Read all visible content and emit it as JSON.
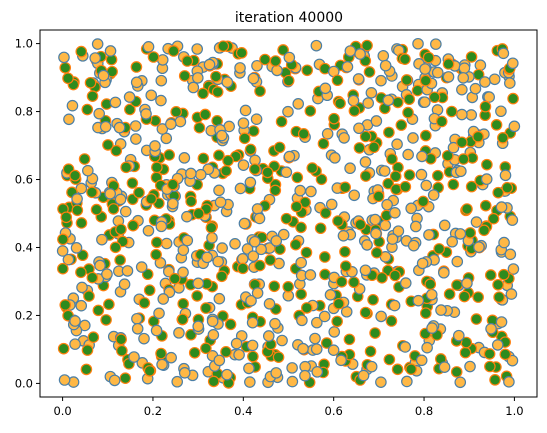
{
  "chart_data": {
    "type": "scatter",
    "title": "iteration 40000",
    "xlabel": "",
    "ylabel": "",
    "xlim": [
      -0.05,
      1.05
    ],
    "ylim": [
      -0.04,
      1.04
    ],
    "xticks": [
      "0.0",
      "0.2",
      "0.4",
      "0.6",
      "0.8",
      "1.0"
    ],
    "xtick_values": [
      0,
      0.2,
      0.4,
      0.6,
      0.8,
      1.0
    ],
    "yticks": [
      "0.0",
      "0.2",
      "0.4",
      "0.6",
      "0.8",
      "1.0"
    ],
    "ytick_values": [
      0,
      0.2,
      0.4,
      0.6,
      0.8,
      1.0
    ],
    "grid": false,
    "legend": "none",
    "point_count": 1000,
    "series": [
      {
        "fill": "#ffb845",
        "edge": "#4c7fa6",
        "label_hint": "orange points, blue edge"
      },
      {
        "fill": "#2e8b1e",
        "edge": "#ff7f0e",
        "label_hint": "green points, orange edge"
      }
    ],
    "points": "approximately 1000 points distributed roughly uniformly over [0,1]x[0,1], about half of each style"
  }
}
